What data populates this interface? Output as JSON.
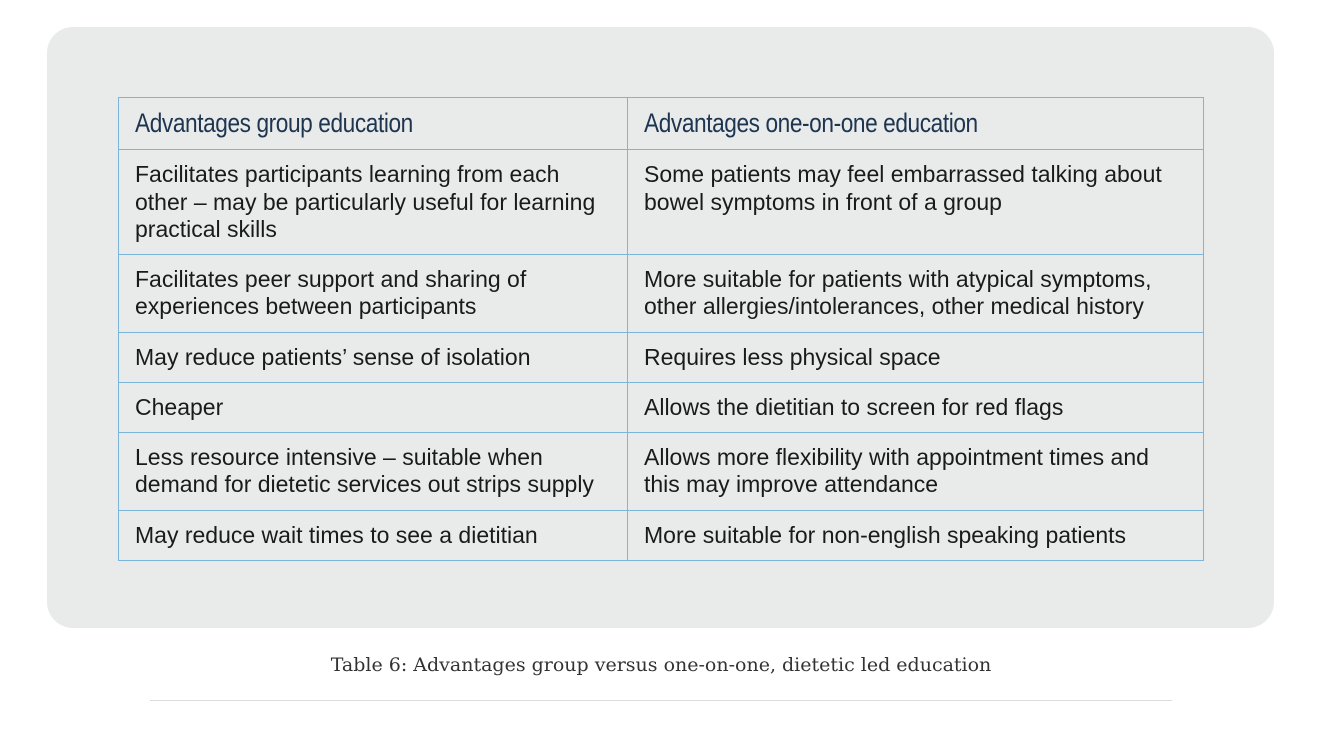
{
  "table": {
    "headers": [
      "Advantages group education",
      "Advantages one-on-one education"
    ],
    "rows": [
      [
        "Facilitates participants learning from each other – may be particularly useful for learning practical skills",
        "Some patients may feel embarrassed talking about bowel symptoms in front of a group"
      ],
      [
        "Facilitates peer support and sharing of experiences between participants",
        "More suitable for patients with atypical symptoms, other allergies/intolerances, other medical history"
      ],
      [
        "May reduce patients’ sense of isolation",
        "Requires less physical space"
      ],
      [
        "Cheaper",
        "Allows the dietitian to screen for red flags"
      ],
      [
        "Less resource intensive – suitable when demand for dietetic services out strips supply",
        "Allows more flexibility with appointment times and this may improve attendance"
      ],
      [
        "May reduce wait times to see a dietitian",
        "More suitable for non-english speaking patients"
      ]
    ]
  },
  "caption": "Table 6: Advantages group versus one-on-one, dietetic led education",
  "colors": {
    "panel_background": "#e9eaea",
    "table_border": "#7cb5dc",
    "header_text": "#1e3550"
  }
}
